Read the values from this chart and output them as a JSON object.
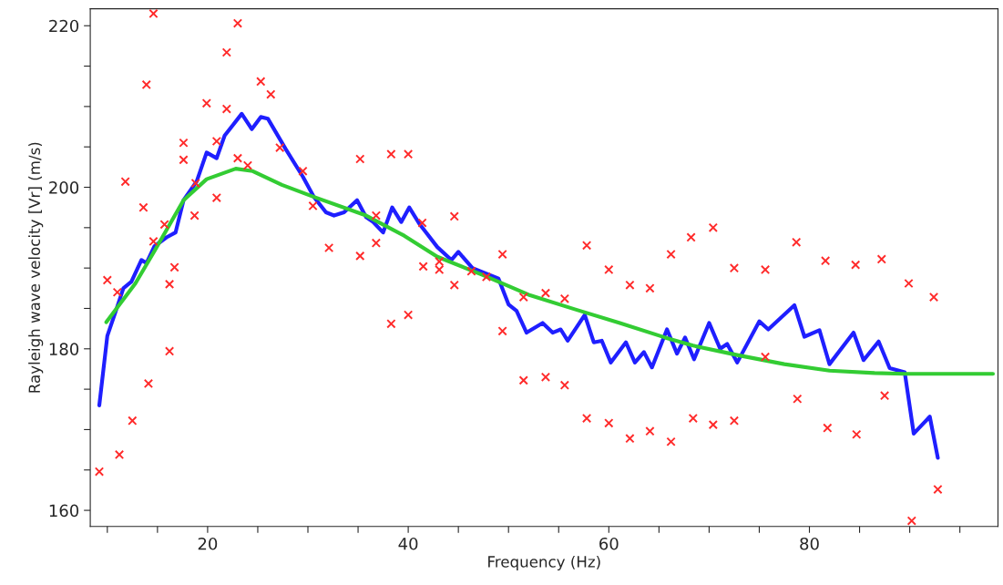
{
  "chart_data": {
    "type": "line",
    "xlabel": "Frequency (Hz)",
    "ylabel": "Rayleigh wave velocity [Vr] (m/s)",
    "xlim": [
      8.3,
      98.8
    ],
    "ylim": [
      158,
      222.1
    ],
    "xticks": [
      {
        "value": 10,
        "label": null
      },
      {
        "value": 15,
        "label": null
      },
      20,
      {
        "value": 25,
        "label": null
      },
      {
        "value": 30,
        "label": null
      },
      {
        "value": 35,
        "label": null
      },
      40,
      {
        "value": 45,
        "label": null
      },
      {
        "value": 50,
        "label": null
      },
      {
        "value": 55,
        "label": null
      },
      60,
      {
        "value": 65,
        "label": null
      },
      {
        "value": 70,
        "label": null
      },
      {
        "value": 75,
        "label": null
      },
      80,
      {
        "value": 85,
        "label": null
      },
      {
        "value": 90,
        "label": null
      },
      {
        "value": 95,
        "label": null
      }
    ],
    "yticks": [
      160,
      {
        "value": 165,
        "label": null
      },
      {
        "value": 170,
        "label": null
      },
      {
        "value": 175,
        "label": null
      },
      180,
      {
        "value": 185,
        "label": null
      },
      {
        "value": 190,
        "label": null
      },
      {
        "value": 195,
        "label": null
      },
      200,
      {
        "value": 205,
        "label": null
      },
      {
        "value": 210,
        "label": null
      },
      {
        "value": 215,
        "label": null
      },
      220
    ],
    "grid": false,
    "series": [
      {
        "type": "scatter",
        "marker": "cross",
        "color": "#ff2a2a",
        "x": [
          9.2,
          11.2,
          12.5,
          14.1,
          16.2,
          10.0,
          11.0,
          11.8,
          13.6,
          13.9,
          14.6,
          14.6,
          15.7,
          16.2,
          16.7,
          17.6,
          17.6,
          18.7,
          18.8,
          19.9,
          20.9,
          20.9,
          21.9,
          21.9,
          23.0,
          23.0,
          24.0,
          25.3,
          26.3,
          27.2,
          29.5,
          30.5,
          32.1,
          35.2,
          35.2,
          36.8,
          36.8,
          38.3,
          38.3,
          40.0,
          40.0,
          41.4,
          44.6,
          41.5,
          43.1,
          43.1,
          44.6,
          49.4,
          46.3,
          47.8,
          49.4,
          51.5,
          53.7,
          55.6,
          51.5,
          53.7,
          55.6,
          57.8,
          57.8,
          60.0,
          60.0,
          62.1,
          62.1,
          64.1,
          64.1,
          66.2,
          66.2,
          68.2,
          68.4,
          70.4,
          72.5,
          75.6,
          78.7,
          81.6,
          84.6,
          87.2,
          89.9,
          92.4,
          75.6,
          78.8,
          87.5,
          70.4,
          72.5,
          81.8,
          84.7,
          92.8,
          90.2
        ],
        "values": [
          164.8,
          166.9,
          171.1,
          175.7,
          179.7,
          188.5,
          187.0,
          200.7,
          197.5,
          212.7,
          221.5,
          193.3,
          195.4,
          188.0,
          190.1,
          205.5,
          203.4,
          196.5,
          200.5,
          210.4,
          205.7,
          198.7,
          209.7,
          216.7,
          220.3,
          203.6,
          202.7,
          213.1,
          211.5,
          204.9,
          202.0,
          197.7,
          192.5,
          203.5,
          191.5,
          196.5,
          193.1,
          204.1,
          183.1,
          204.1,
          184.2,
          195.6,
          196.4,
          190.2,
          190.8,
          189.8,
          187.9,
          191.7,
          189.6,
          188.9,
          182.2,
          186.4,
          186.9,
          186.2,
          176.1,
          176.5,
          175.5,
          192.8,
          171.4,
          189.8,
          170.8,
          187.9,
          168.9,
          187.5,
          169.8,
          191.7,
          168.5,
          193.8,
          171.4,
          195.0,
          190.0,
          189.8,
          193.2,
          190.9,
          190.4,
          191.1,
          188.1,
          186.4,
          179.0,
          173.8,
          174.2,
          170.6,
          171.1,
          170.2,
          169.4,
          162.6,
          158.7
        ]
      },
      {
        "marker": "none",
        "line_style": "solid",
        "color": "#1f1fff",
        "x": [
          9.2,
          10.0,
          10.8,
          11.6,
          12.4,
          13.4,
          13.9,
          14.7,
          15.9,
          16.8,
          17.6,
          18.9,
          19.9,
          20.9,
          21.7,
          23.4,
          24.4,
          25.3,
          26.0,
          27.8,
          29.5,
          30.6,
          31.8,
          32.6,
          33.6,
          34.9,
          35.8,
          36.5,
          37.5,
          38.4,
          39.3,
          40.1,
          41.1,
          42.9,
          44.3,
          45.0,
          46.4,
          49.0,
          50.0,
          50.8,
          51.8,
          53.4,
          54.4,
          55.2,
          55.9,
          57.6,
          58.5,
          59.3,
          60.2,
          61.7,
          62.6,
          63.5,
          64.3,
          65.8,
          66.8,
          67.6,
          68.5,
          70.0,
          71.1,
          71.8,
          72.8,
          75.0,
          75.9,
          78.5,
          79.5,
          81.0,
          82.0,
          84.4,
          85.4,
          86.9,
          88.0,
          89.5,
          90.4,
          92.0,
          92.8
        ],
        "values": [
          173.0,
          181.6,
          184.5,
          187.5,
          188.3,
          191.0,
          190.6,
          192.7,
          193.8,
          194.4,
          198.4,
          200.7,
          204.3,
          203.6,
          206.4,
          209.1,
          207.2,
          208.7,
          208.5,
          204.7,
          201.3,
          198.8,
          196.9,
          196.5,
          196.9,
          198.4,
          196.3,
          195.7,
          194.4,
          197.5,
          195.7,
          197.5,
          195.5,
          192.6,
          191.0,
          192.0,
          190.0,
          188.7,
          185.5,
          184.7,
          182.0,
          183.2,
          182.0,
          182.4,
          181.0,
          184.2,
          180.8,
          181.0,
          178.3,
          180.8,
          178.3,
          179.6,
          177.7,
          182.4,
          179.4,
          181.4,
          178.7,
          183.2,
          180.0,
          180.6,
          178.3,
          183.4,
          182.4,
          185.4,
          181.5,
          182.3,
          178.1,
          182.0,
          178.6,
          180.9,
          177.6,
          177.1,
          169.5,
          171.6,
          166.5
        ]
      },
      {
        "marker": "none",
        "line_style": "solid",
        "color": "#33cc33",
        "x": [
          9.9,
          12.8,
          14.7,
          17.6,
          19.9,
          22.8,
          24.5,
          27.4,
          30.6,
          35.8,
          39.6,
          42.9,
          47.5,
          52.0,
          56.6,
          61.1,
          65.6,
          68.4,
          72.9,
          77.5,
          82.0,
          86.5,
          89.5,
          98.3
        ],
        "values": [
          183.3,
          188.1,
          192.1,
          198.4,
          201.0,
          202.3,
          202.0,
          200.3,
          198.8,
          196.5,
          194.0,
          191.4,
          189.1,
          186.7,
          184.9,
          183.2,
          181.4,
          180.4,
          179.2,
          178.1,
          177.3,
          177.0,
          176.9,
          176.9
        ]
      }
    ]
  }
}
